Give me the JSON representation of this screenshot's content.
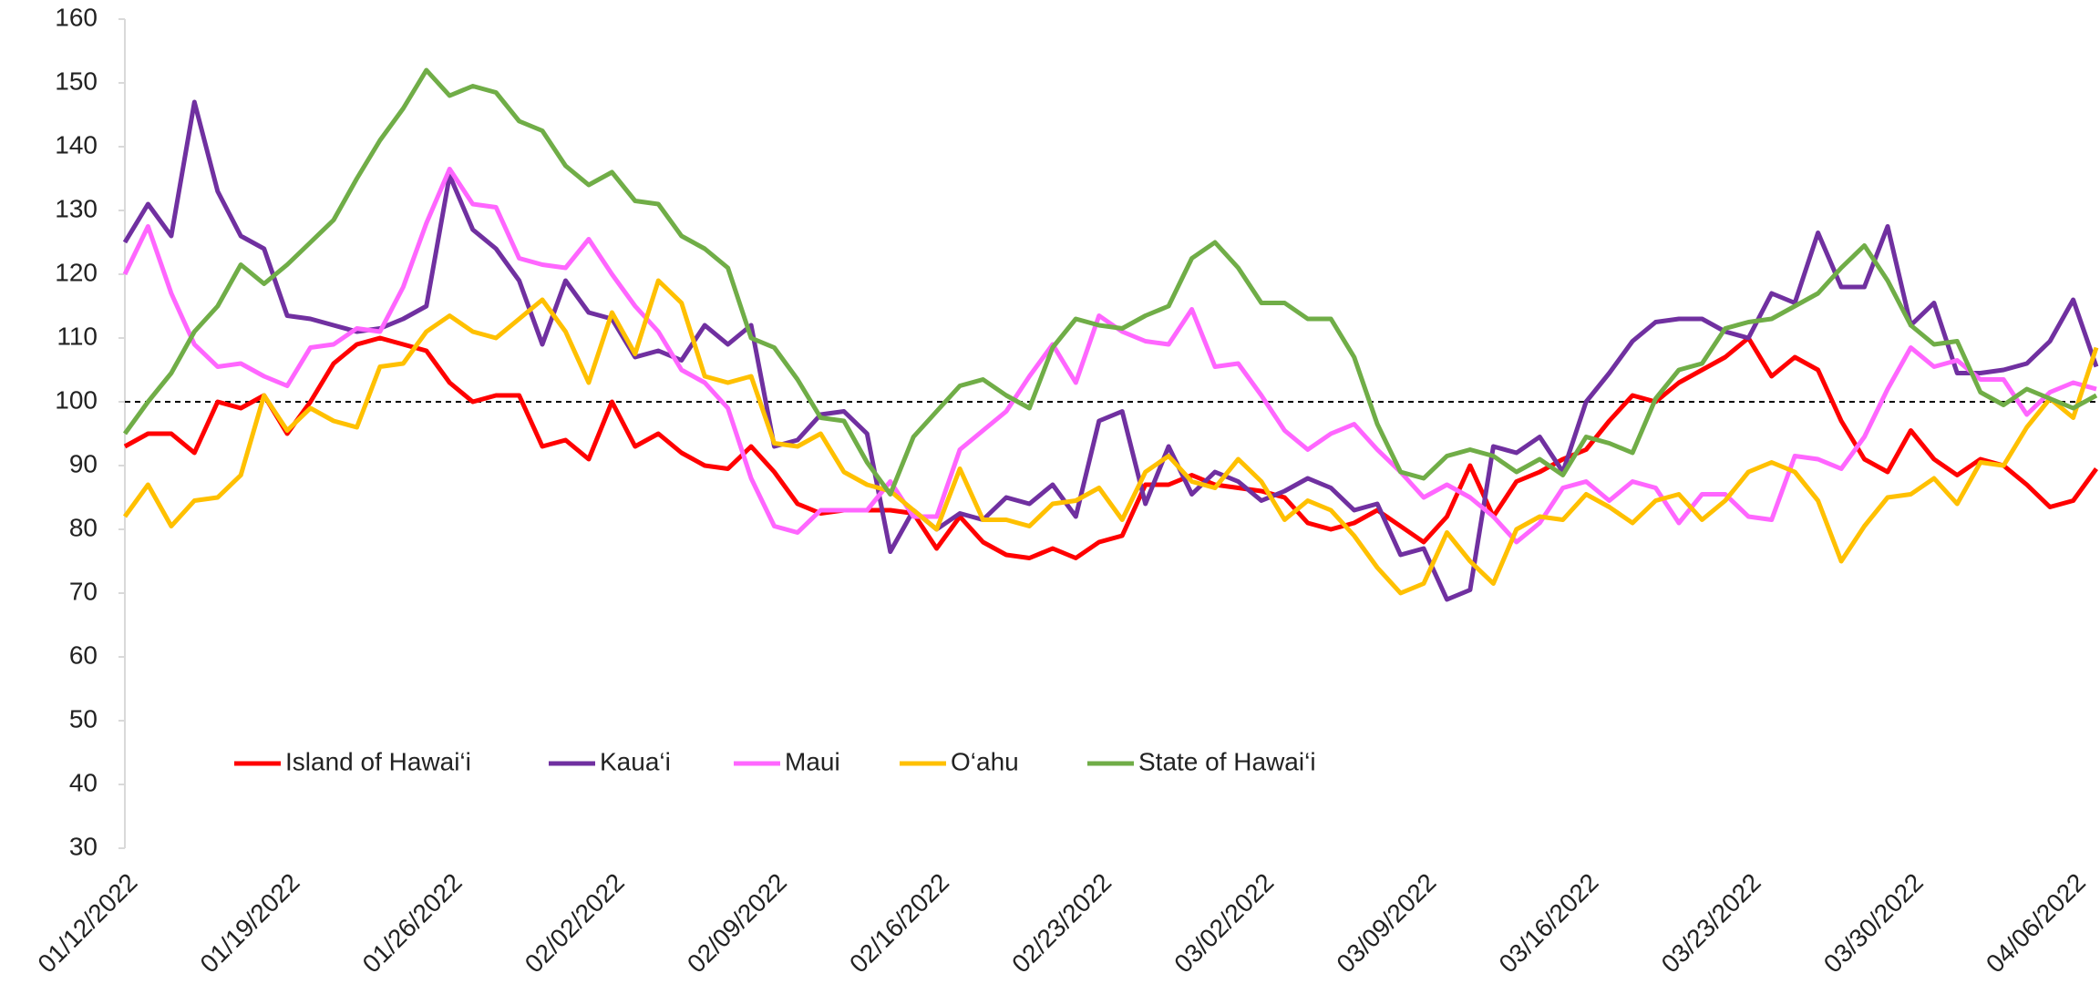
{
  "chart_data": {
    "type": "line",
    "categories": [
      "01/12/2022",
      null,
      null,
      null,
      null,
      null,
      null,
      "01/19/2022",
      null,
      null,
      null,
      null,
      null,
      null,
      "01/26/2022",
      null,
      null,
      null,
      null,
      null,
      null,
      "02/02/2022",
      null,
      null,
      null,
      null,
      null,
      null,
      "02/09/2022",
      null,
      null,
      null,
      null,
      null,
      null,
      "02/16/2022",
      null,
      null,
      null,
      null,
      null,
      null,
      "02/23/2022",
      null,
      null,
      null,
      null,
      null,
      null,
      "03/02/2022",
      null,
      null,
      null,
      null,
      null,
      null,
      "03/09/2022",
      null,
      null,
      null,
      null,
      null,
      null,
      "03/16/2022",
      null,
      null,
      null,
      null,
      null,
      null,
      "03/23/2022",
      null,
      null,
      null,
      null,
      null,
      null,
      "03/30/2022",
      null,
      null,
      null,
      null,
      null,
      null,
      "04/06/2022",
      null
    ],
    "series": [
      {
        "name": "Island of Hawai‘i",
        "color": "#ff0000",
        "values": [
          93,
          95,
          95,
          92,
          100,
          99,
          101,
          95,
          100,
          106,
          109,
          110,
          109,
          108,
          103,
          100,
          101,
          101,
          93,
          94,
          91,
          100,
          93,
          95,
          92,
          90,
          89.5,
          93,
          89,
          84,
          82.5,
          83,
          83,
          83,
          82.5,
          77,
          82,
          78,
          76,
          75.5,
          77,
          75.5,
          78,
          79,
          87,
          87,
          88.5,
          87,
          86.5,
          86,
          85,
          81,
          80,
          81,
          83,
          80.5,
          78,
          82,
          90,
          82,
          87.5,
          89,
          91,
          92.5,
          97,
          101,
          100,
          103,
          105,
          107,
          110,
          104,
          107,
          105,
          97,
          91,
          89,
          95.5,
          91,
          88.5,
          91,
          90,
          87,
          83.5,
          84.5,
          89.5
        ]
      },
      {
        "name": "Kaua‘i",
        "color": "#7030a0",
        "values": [
          125,
          131,
          126,
          147,
          133,
          126,
          124,
          113.5,
          113,
          112,
          111,
          111.5,
          113,
          115,
          135.5,
          127,
          124,
          119,
          109,
          119,
          114,
          113,
          107,
          108,
          106.5,
          112,
          109,
          112,
          93,
          94,
          98,
          98.5,
          95,
          76.5,
          83,
          80,
          82.5,
          81.5,
          85,
          84,
          87,
          82,
          97,
          98.5,
          84,
          93,
          85.5,
          89,
          87.5,
          84.5,
          86,
          88,
          86.5,
          83,
          84,
          76,
          77,
          69,
          70.5,
          93,
          92,
          94.5,
          89,
          100,
          104.5,
          109.5,
          112.5,
          113,
          113,
          111,
          110,
          117,
          115.5,
          126.5,
          118,
          118,
          127.5,
          112,
          115.5,
          104.5,
          104.5,
          105,
          106,
          109.5,
          116,
          105.5
        ]
      },
      {
        "name": "Maui",
        "color": "#ff66ff",
        "values": [
          120,
          127.5,
          117,
          109,
          105.5,
          106,
          104,
          102.5,
          108.5,
          109,
          111.5,
          111,
          118,
          128,
          136.5,
          131,
          130.5,
          122.5,
          121.5,
          121,
          125.5,
          120,
          115,
          111,
          105,
          103,
          99,
          88,
          80.5,
          79.5,
          83,
          83,
          83,
          87.5,
          82,
          82,
          92.5,
          95.5,
          98.5,
          104,
          109,
          103,
          113.5,
          111,
          109.5,
          109,
          114.5,
          105.5,
          106,
          101,
          95.5,
          92.5,
          95,
          96.5,
          92.5,
          89,
          85,
          87,
          85,
          82,
          78,
          81,
          86.5,
          87.5,
          84.5,
          87.5,
          86.5,
          81,
          85.5,
          85.5,
          82,
          81.5,
          91.5,
          91,
          89.5,
          94.5,
          102,
          108.5,
          105.5,
          106.5,
          103.5,
          103.5,
          98,
          101.5,
          103,
          102
        ]
      },
      {
        "name": "O‘ahu",
        "color": "#ffc000",
        "values": [
          82,
          87,
          80.5,
          84.5,
          85,
          88.5,
          101,
          95.5,
          99,
          97,
          96,
          105.5,
          106,
          111,
          113.5,
          111,
          110,
          113,
          116,
          111,
          103,
          114,
          107.5,
          119,
          115.5,
          104,
          103,
          104,
          93.5,
          93,
          95,
          89,
          87,
          86,
          83,
          80,
          89.5,
          81.5,
          81.5,
          80.5,
          84,
          84.5,
          86.5,
          81.5,
          89,
          91.5,
          87.5,
          86.5,
          91,
          87.5,
          81.5,
          84.5,
          83,
          79,
          74,
          70,
          71.5,
          79.5,
          75,
          71.5,
          80,
          82,
          81.5,
          85.5,
          83.5,
          81,
          84.5,
          85.5,
          81.5,
          84.5,
          89,
          90.5,
          89,
          84.5,
          75,
          80.5,
          85,
          85.5,
          88,
          84,
          90.5,
          90,
          96,
          100.5,
          97.5,
          108.5
        ]
      },
      {
        "name": "State of Hawai‘i",
        "color": "#70ad47",
        "values": [
          95,
          100,
          104.5,
          111,
          115,
          121.5,
          118.5,
          121.5,
          125,
          128.5,
          135,
          141,
          146,
          152,
          148,
          149.5,
          148.5,
          144,
          142.5,
          137,
          134,
          136,
          131.5,
          131,
          126,
          124,
          121,
          110,
          108.5,
          103.5,
          97.5,
          97,
          90.5,
          85.5,
          94.5,
          98.5,
          102.5,
          103.5,
          101,
          99,
          108.5,
          113,
          112,
          111.5,
          113.5,
          115,
          122.5,
          125,
          121,
          115.5,
          115.5,
          113,
          113,
          107,
          96.5,
          89,
          88,
          91.5,
          92.5,
          91.5,
          89,
          91,
          88.5,
          94.5,
          93.5,
          92,
          100.5,
          105,
          106,
          111.5,
          112.5,
          113,
          115,
          117,
          121,
          124.5,
          119,
          112,
          109,
          109.5,
          101.5,
          99.5,
          102,
          100.5,
          99,
          101
        ]
      }
    ],
    "ylim": [
      30,
      160
    ],
    "yticks": [
      30,
      40,
      50,
      60,
      70,
      80,
      90,
      100,
      110,
      120,
      130,
      140,
      150,
      160
    ],
    "reference_line": 100,
    "grid": false,
    "legend": "bottom-left"
  }
}
